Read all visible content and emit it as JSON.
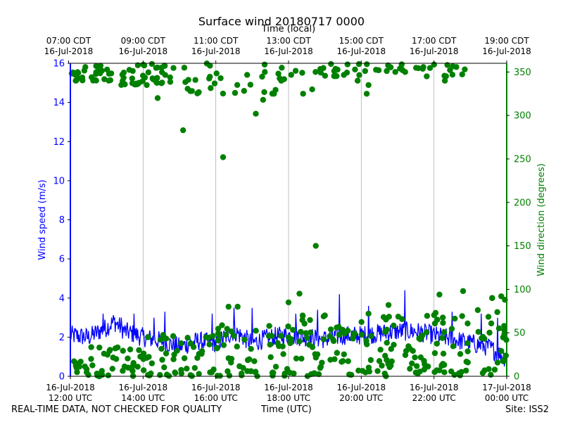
{
  "chart_data": {
    "type": "line",
    "title": "Surface wind 20180717 0000",
    "top_xlabel": "Time (local)",
    "xlabel": "Time (UTC)",
    "ylabel": "Wind speed (m/s)",
    "y2label": "Wind direction (degrees)",
    "xlim": [
      0,
      12
    ],
    "ylim": [
      0,
      16
    ],
    "y2lim": [
      0,
      360
    ],
    "yticks": [
      0,
      2,
      4,
      6,
      8,
      10,
      12,
      14,
      16
    ],
    "y2ticks": [
      0,
      50,
      100,
      150,
      200,
      250,
      300,
      350
    ],
    "bottom_ticks": [
      {
        "x": 0,
        "lines": [
          "16-Jul-2018",
          "12:00 UTC"
        ]
      },
      {
        "x": 2,
        "lines": [
          "16-Jul-2018",
          "14:00 UTC"
        ]
      },
      {
        "x": 4,
        "lines": [
          "16-Jul-2018",
          "16:00 UTC"
        ]
      },
      {
        "x": 6,
        "lines": [
          "16-Jul-2018",
          "18:00 UTC"
        ]
      },
      {
        "x": 8,
        "lines": [
          "16-Jul-2018",
          "20:00 UTC"
        ]
      },
      {
        "x": 10,
        "lines": [
          "16-Jul-2018",
          "22:00 UTC"
        ]
      },
      {
        "x": 12,
        "lines": [
          "17-Jul-2018",
          "00:00 UTC"
        ]
      }
    ],
    "top_ticks": [
      {
        "x": -0.05,
        "lines": [
          "07:00 CDT",
          "16-Jul-2018"
        ]
      },
      {
        "x": 2,
        "lines": [
          "09:00 CDT",
          "16-Jul-2018"
        ]
      },
      {
        "x": 4,
        "lines": [
          "11:00 CDT",
          "16-Jul-2018"
        ]
      },
      {
        "x": 6,
        "lines": [
          "13:00 CDT",
          "16-Jul-2018"
        ]
      },
      {
        "x": 8,
        "lines": [
          "15:00 CDT",
          "16-Jul-2018"
        ]
      },
      {
        "x": 10,
        "lines": [
          "17:00 CDT",
          "16-Jul-2018"
        ]
      },
      {
        "x": 12,
        "lines": [
          "19:00 CDT",
          "16-Jul-2018"
        ]
      }
    ],
    "grid": "vertical",
    "series": [
      {
        "name": "Wind speed",
        "axis": "left",
        "style": "line",
        "color": "#0000ff",
        "x": [
          0,
          0.5,
          1,
          1.2,
          1.5,
          2,
          2.5,
          3,
          3.5,
          4,
          4.5,
          5,
          5.5,
          6,
          6.5,
          7,
          7.5,
          8,
          8.5,
          9,
          9.5,
          10,
          10.5,
          11,
          11.5,
          12
        ],
        "y": [
          2.1,
          2.0,
          2.5,
          2.8,
          2.3,
          2.0,
          1.8,
          1.5,
          1.8,
          1.7,
          2.3,
          1.7,
          2.0,
          2.1,
          2.0,
          1.9,
          2.1,
          2.1,
          2.2,
          2.3,
          2.3,
          2.1,
          1.9,
          1.7,
          1.5,
          0.9
        ],
        "noise_amplitude": 0.5,
        "peaks": [
          {
            "x": 0.9,
            "y": 3.2
          },
          {
            "x": 1.4,
            "y": 3.0
          },
          {
            "x": 1.75,
            "y": 3.2
          },
          {
            "x": 2.3,
            "y": 3.0
          },
          {
            "x": 2.6,
            "y": 3.3
          },
          {
            "x": 3.9,
            "y": 3.2
          },
          {
            "x": 4.5,
            "y": 3.5
          },
          {
            "x": 5.0,
            "y": 3.5
          },
          {
            "x": 6.2,
            "y": 3.2
          },
          {
            "x": 6.8,
            "y": 3.4
          },
          {
            "x": 7.4,
            "y": 4.2
          },
          {
            "x": 8.2,
            "y": 3.6
          },
          {
            "x": 9.2,
            "y": 4.4
          },
          {
            "x": 10.5,
            "y": 3.3
          },
          {
            "x": 11.3,
            "y": 3.2
          },
          {
            "x": 11.75,
            "y": 3.0
          }
        ]
      },
      {
        "name": "Wind direction",
        "axis": "right",
        "style": "scatter",
        "color": "#008000",
        "clusters": [
          {
            "x_from": 0,
            "x_to": 1.2,
            "count": 30,
            "y_from": 340,
            "y_to": 360
          },
          {
            "x_from": 1.4,
            "x_to": 2.9,
            "count": 40,
            "y_from": 335,
            "y_to": 360
          },
          {
            "x_from": 3.0,
            "x_to": 6.0,
            "count": 32,
            "y_from": 325,
            "y_to": 360
          },
          {
            "x_from": 6.0,
            "x_to": 8.0,
            "count": 22,
            "y_from": 345,
            "y_to": 360
          },
          {
            "x_from": 8.0,
            "x_to": 10.0,
            "count": 18,
            "y_from": 350,
            "y_to": 360
          },
          {
            "x_from": 10.0,
            "x_to": 11.0,
            "count": 10,
            "y_from": 345,
            "y_to": 360
          },
          {
            "x_from": 0,
            "x_to": 2.0,
            "count": 45,
            "y_from": 0,
            "y_to": 35
          },
          {
            "x_from": 2.0,
            "x_to": 4.0,
            "count": 50,
            "y_from": 0,
            "y_to": 50
          },
          {
            "x_from": 4.0,
            "x_to": 6.0,
            "count": 55,
            "y_from": 0,
            "y_to": 60
          },
          {
            "x_from": 6.0,
            "x_to": 8.0,
            "count": 55,
            "y_from": 0,
            "y_to": 70
          },
          {
            "x_from": 8.0,
            "x_to": 10.0,
            "count": 55,
            "y_from": 0,
            "y_to": 70
          },
          {
            "x_from": 10.0,
            "x_to": 12.0,
            "count": 60,
            "y_from": 0,
            "y_to": 80
          }
        ],
        "points": [
          [
            4.2,
            252
          ],
          [
            6.75,
            150
          ],
          [
            3.1,
            283
          ],
          [
            5.1,
            302
          ],
          [
            5.3,
            318
          ],
          [
            5.6,
            325
          ],
          [
            4.35,
            80
          ],
          [
            4.6,
            80
          ],
          [
            6.0,
            85
          ],
          [
            6.3,
            95
          ],
          [
            7.0,
            70
          ],
          [
            8.2,
            72
          ],
          [
            8.75,
            82
          ],
          [
            10.15,
            94
          ],
          [
            10.8,
            98
          ],
          [
            11.6,
            90
          ],
          [
            11.85,
            92
          ],
          [
            11.95,
            88
          ],
          [
            2.4,
            320
          ],
          [
            2.1,
            335
          ],
          [
            3.3,
            328
          ],
          [
            5.8,
            340
          ],
          [
            6.4,
            325
          ],
          [
            6.65,
            330
          ],
          [
            7.9,
            340
          ],
          [
            8.15,
            325
          ],
          [
            8.2,
            335
          ],
          [
            9.8,
            345
          ],
          [
            10.3,
            340
          ],
          [
            11.6,
            90
          ]
        ]
      }
    ]
  },
  "footer": {
    "left": "REAL-TIME DATA, NOT CHECKED FOR QUALITY",
    "center": "Time (UTC)",
    "right": "Site: ISS2"
  }
}
